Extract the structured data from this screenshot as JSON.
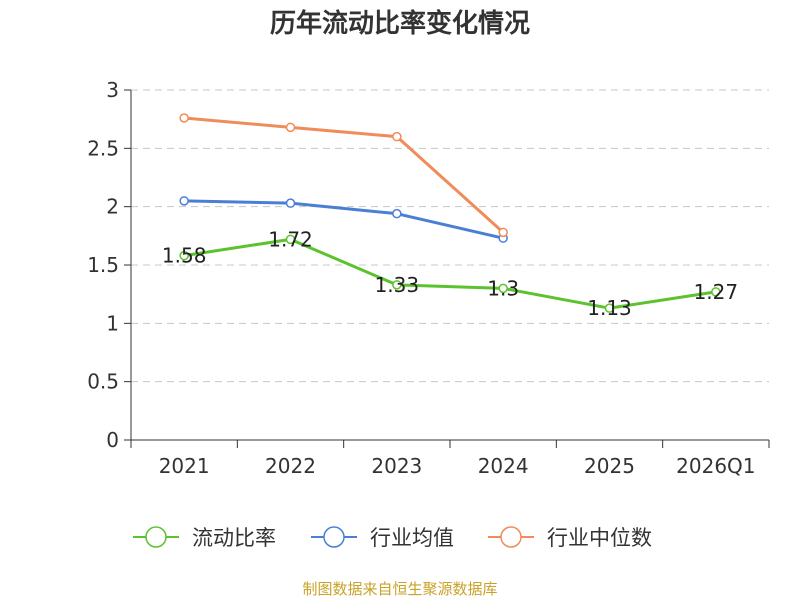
{
  "chart_data": {
    "type": "line",
    "title": "历年流动比率变化情况",
    "categories": [
      "2021",
      "2022",
      "2023",
      "2024",
      "2025",
      "2026Q1"
    ],
    "ylim": [
      0,
      3
    ],
    "yticks": [
      0,
      0.5,
      1,
      1.5,
      2,
      2.5,
      3
    ],
    "ytick_labels": [
      "0",
      "0.5",
      "1",
      "1.5",
      "2",
      "2.5",
      "3"
    ],
    "grid": true,
    "legend_position": "bottom",
    "series": [
      {
        "name": "流动比率",
        "color": "#5cc22e",
        "values": [
          1.58,
          1.72,
          1.33,
          1.3,
          1.13,
          1.27
        ],
        "labels": [
          "1.58",
          "1.72",
          "1.33",
          "1.3",
          "1.13",
          "1.27"
        ]
      },
      {
        "name": "行业均值",
        "color": "#4a7fd6",
        "values": [
          2.05,
          2.03,
          1.94,
          1.73,
          null,
          null
        ]
      },
      {
        "name": "行业中位数",
        "color": "#f08b5a",
        "values": [
          2.76,
          2.68,
          2.6,
          1.78,
          null,
          null
        ]
      }
    ]
  },
  "footer": "制图数据来自恒生聚源数据库"
}
